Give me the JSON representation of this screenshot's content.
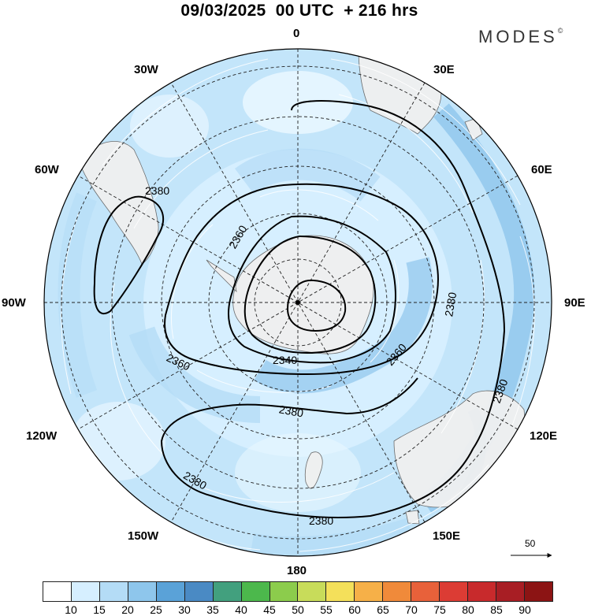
{
  "header": {
    "title": "09/03/2025  00 UTC  + 216 hrs",
    "brand": "MODES"
  },
  "map": {
    "projection": "south-polar-stereographic",
    "field": "geopotential height contours with wind-speed shading and streamlines",
    "longitude_labels": {
      "lon_0": "0",
      "lon_30e": "30E",
      "lon_60e": "60E",
      "lon_90e": "90E",
      "lon_120e": "120E",
      "lon_150e": "150E",
      "lon_180": "180",
      "lon_150w": "150W",
      "lon_120w": "120W",
      "lon_90w": "90W",
      "lon_60w": "60W",
      "lon_30w": "30W"
    },
    "contour_labels": {
      "c1": "2380",
      "c2": "2360",
      "c3": "2380",
      "c4": "2360",
      "c5": "2340",
      "c6": "2360",
      "c7": "2380",
      "c8": "2380",
      "c9": "2380",
      "c10": "2380"
    },
    "reference_vector": "50",
    "colors": {
      "shade_light": "#d6efff",
      "shade_mid": "#b4dcf6",
      "shade_strong": "#8ec6ec",
      "land": "#f0f0f0",
      "contour": "#000000"
    }
  },
  "colorbar": {
    "ticks": [
      "10",
      "15",
      "20",
      "25",
      "30",
      "35",
      "40",
      "45",
      "50",
      "55",
      "60",
      "65",
      "70",
      "75",
      "80",
      "85",
      "90"
    ],
    "colors": [
      "#ffffff",
      "#d6efff",
      "#b4dcf6",
      "#8ec6ec",
      "#5aa2d8",
      "#4a8ac4",
      "#42a07e",
      "#4cb84c",
      "#8ccc4c",
      "#c8dc5a",
      "#f4e05a",
      "#f6b048",
      "#f08a3a",
      "#e8613a",
      "#dc3c34",
      "#c82a2c",
      "#a81e24",
      "#8c1414"
    ]
  }
}
